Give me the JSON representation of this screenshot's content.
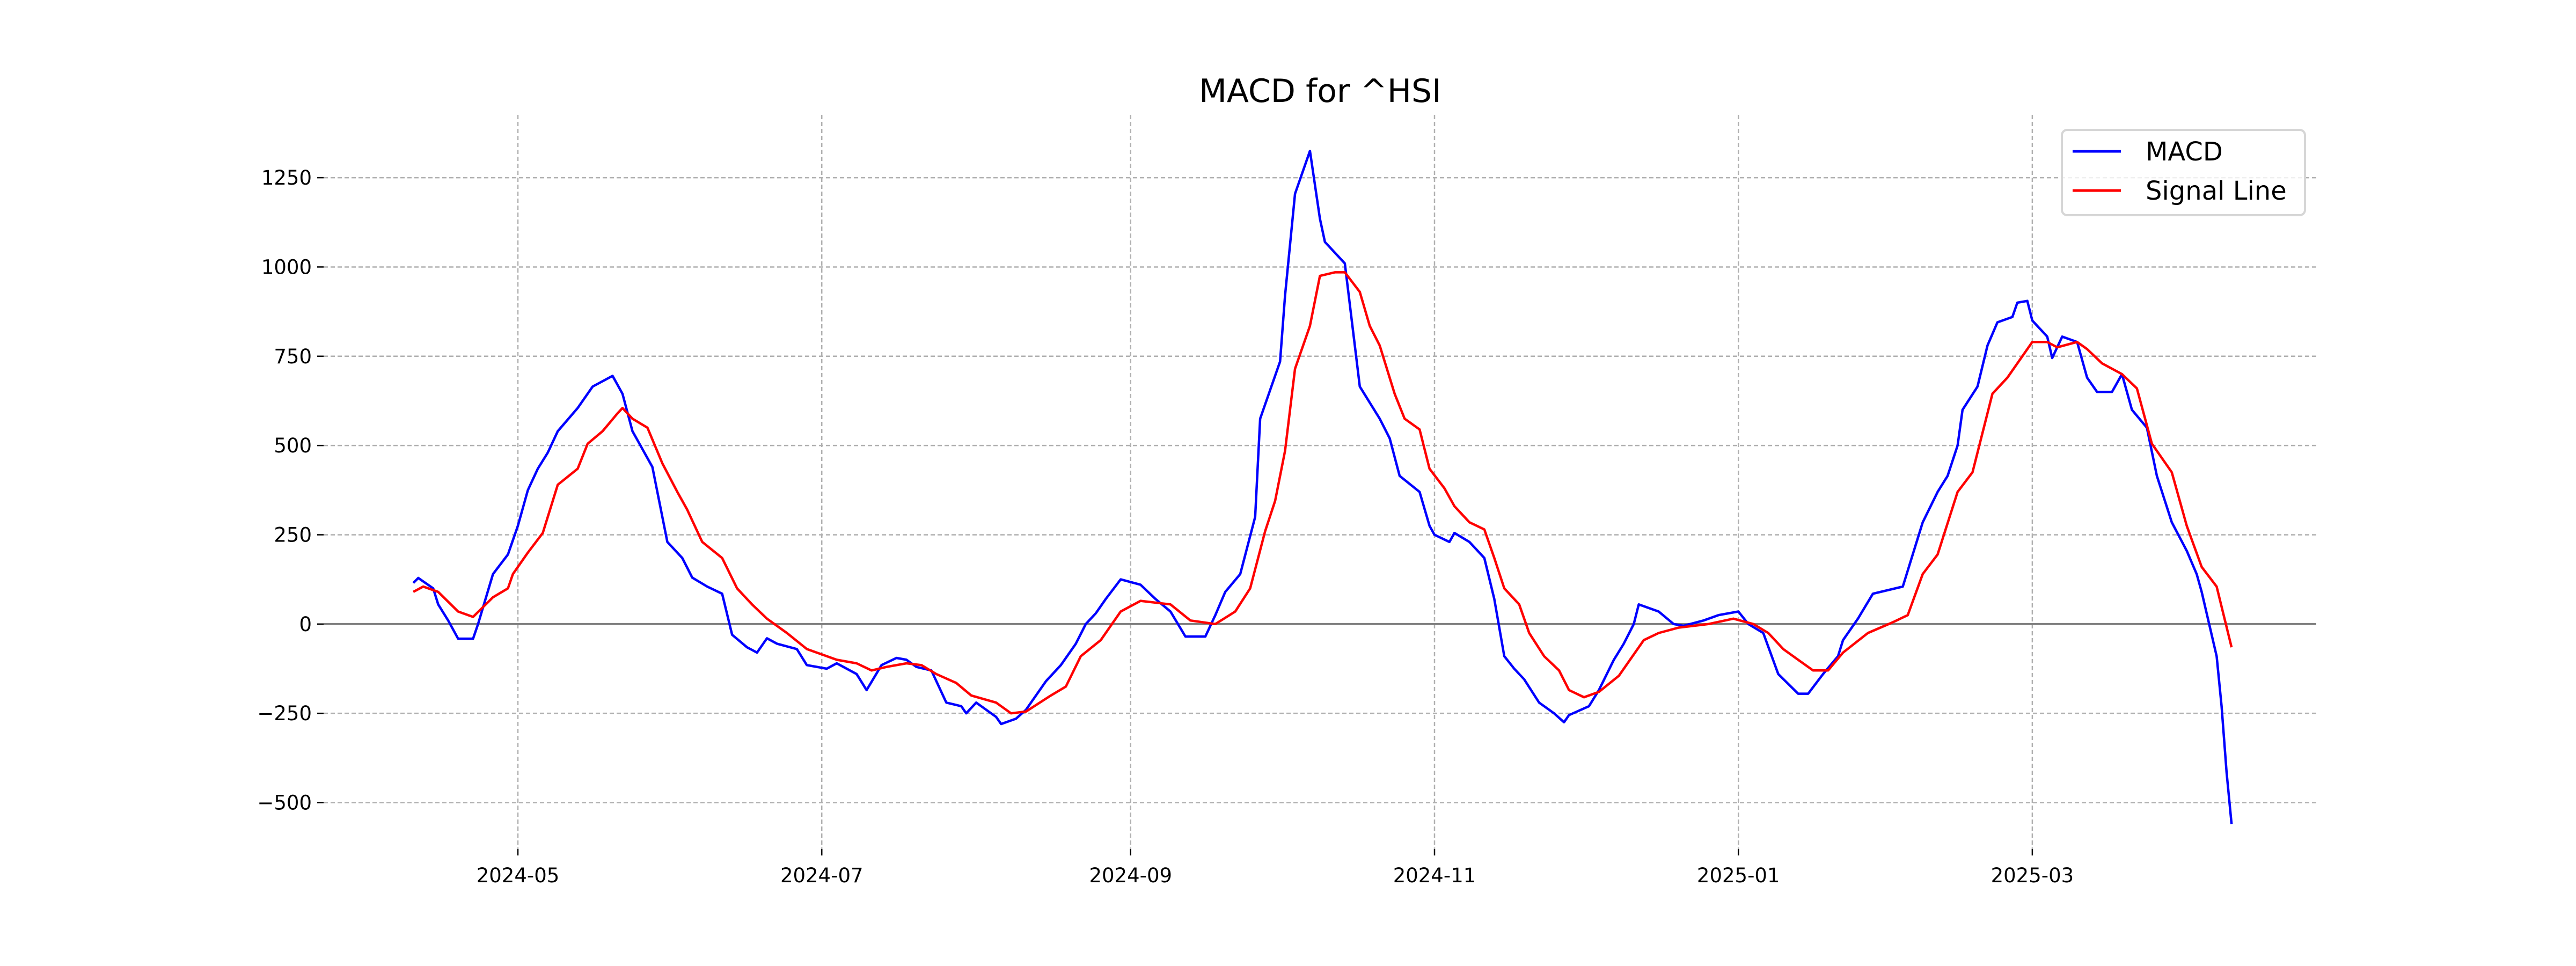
{
  "chart_data": {
    "type": "line",
    "title": "MACD for ^HSI",
    "xlabel": "",
    "ylabel": "",
    "x_origin_date": "2024-05-01",
    "x_unit": "days since x_origin_date",
    "xlim": [
      -39,
      361
    ],
    "ylim": [
      -630,
      1426
    ],
    "grid": true,
    "legend_position": "top-right",
    "zero_line": 0,
    "x_ticks": [
      {
        "value": 0,
        "label": "2024-05"
      },
      {
        "value": 61,
        "label": "2024-07"
      },
      {
        "value": 123,
        "label": "2024-09"
      },
      {
        "value": 184,
        "label": "2024-11"
      },
      {
        "value": 245,
        "label": "2025-01"
      },
      {
        "value": 304,
        "label": "2025-03"
      }
    ],
    "y_ticks": [
      {
        "value": -500,
        "label": "−500"
      },
      {
        "value": -250,
        "label": "−250"
      },
      {
        "value": 0,
        "label": "0"
      },
      {
        "value": 250,
        "label": "250"
      },
      {
        "value": 500,
        "label": "500"
      },
      {
        "value": 750,
        "label": "750"
      },
      {
        "value": 1000,
        "label": "1000"
      },
      {
        "value": 1250,
        "label": "1250"
      }
    ],
    "series": [
      {
        "name": "MACD",
        "color": "#0000ff",
        "points": [
          [
            -21,
            115
          ],
          [
            -20,
            129
          ],
          [
            -17,
            100
          ],
          [
            -16,
            55
          ],
          [
            -14,
            10
          ],
          [
            -12,
            -41
          ],
          [
            -9,
            -41
          ],
          [
            -8,
            0
          ],
          [
            -5,
            140
          ],
          [
            -2,
            195
          ],
          [
            0,
            275
          ],
          [
            2,
            375
          ],
          [
            4,
            435
          ],
          [
            6,
            480
          ],
          [
            8,
            540
          ],
          [
            12,
            605
          ],
          [
            15,
            665
          ],
          [
            19,
            695
          ],
          [
            21,
            645
          ],
          [
            23,
            540
          ],
          [
            25,
            490
          ],
          [
            27,
            440
          ],
          [
            30,
            230
          ],
          [
            33,
            185
          ],
          [
            35,
            130
          ],
          [
            38,
            105
          ],
          [
            41,
            85
          ],
          [
            43,
            -30
          ],
          [
            46,
            -65
          ],
          [
            48,
            -80
          ],
          [
            50,
            -40
          ],
          [
            52,
            -55
          ],
          [
            56,
            -70
          ],
          [
            58,
            -115
          ],
          [
            62,
            -125
          ],
          [
            64,
            -110
          ],
          [
            68,
            -140
          ],
          [
            70,
            -185
          ],
          [
            73,
            -115
          ],
          [
            76,
            -95
          ],
          [
            78,
            -100
          ],
          [
            80,
            -120
          ],
          [
            83,
            -130
          ],
          [
            86,
            -220
          ],
          [
            89,
            -230
          ],
          [
            90,
            -250
          ],
          [
            92,
            -220
          ],
          [
            96,
            -260
          ],
          [
            97,
            -280
          ],
          [
            100,
            -265
          ],
          [
            102,
            -240
          ],
          [
            106,
            -160
          ],
          [
            109,
            -115
          ],
          [
            112,
            -55
          ],
          [
            114,
            0
          ],
          [
            116,
            30
          ],
          [
            118,
            70
          ],
          [
            121,
            125
          ],
          [
            125,
            110
          ],
          [
            128,
            70
          ],
          [
            131,
            35
          ],
          [
            134,
            -35
          ],
          [
            138,
            -35
          ],
          [
            140,
            25
          ],
          [
            142,
            90
          ],
          [
            145,
            140
          ],
          [
            148,
            300
          ],
          [
            149,
            575
          ],
          [
            153,
            735
          ],
          [
            154,
            920
          ],
          [
            156,
            1205
          ],
          [
            159,
            1325
          ],
          [
            161,
            1135
          ],
          [
            162,
            1070
          ],
          [
            166,
            1010
          ],
          [
            169,
            665
          ],
          [
            173,
            575
          ],
          [
            175,
            520
          ],
          [
            177,
            415
          ],
          [
            181,
            370
          ],
          [
            183,
            275
          ],
          [
            184,
            250
          ],
          [
            187,
            230
          ],
          [
            188,
            255
          ],
          [
            191,
            230
          ],
          [
            194,
            185
          ],
          [
            196,
            70
          ],
          [
            198,
            -90
          ],
          [
            200,
            -125
          ],
          [
            202,
            -155
          ],
          [
            205,
            -220
          ],
          [
            208,
            -250
          ],
          [
            210,
            -275
          ],
          [
            211,
            -255
          ],
          [
            215,
            -230
          ],
          [
            217,
            -185
          ],
          [
            220,
            -100
          ],
          [
            222,
            -55
          ],
          [
            224,
            0
          ],
          [
            225,
            55
          ],
          [
            229,
            35
          ],
          [
            232,
            0
          ],
          [
            234,
            -5
          ],
          [
            238,
            10
          ],
          [
            241,
            25
          ],
          [
            245,
            35
          ],
          [
            247,
            0
          ],
          [
            250,
            -25
          ],
          [
            253,
            -140
          ],
          [
            257,
            -195
          ],
          [
            259,
            -195
          ],
          [
            262,
            -140
          ],
          [
            265,
            -90
          ],
          [
            266,
            -45
          ],
          [
            269,
            15
          ],
          [
            272,
            85
          ],
          [
            278,
            105
          ],
          [
            282,
            285
          ],
          [
            285,
            370
          ],
          [
            287,
            415
          ],
          [
            289,
            500
          ],
          [
            290,
            600
          ],
          [
            293,
            665
          ],
          [
            295,
            780
          ],
          [
            297,
            845
          ],
          [
            300,
            860
          ],
          [
            301,
            900
          ],
          [
            303,
            905
          ],
          [
            304,
            850
          ],
          [
            307,
            805
          ],
          [
            308,
            745
          ],
          [
            310,
            805
          ],
          [
            313,
            790
          ],
          [
            315,
            690
          ],
          [
            317,
            650
          ],
          [
            320,
            650
          ],
          [
            322,
            700
          ],
          [
            324,
            600
          ],
          [
            327,
            550
          ],
          [
            329,
            415
          ],
          [
            332,
            285
          ],
          [
            335,
            205
          ],
          [
            337,
            140
          ],
          [
            338,
            90
          ],
          [
            341,
            -90
          ],
          [
            342,
            -230
          ],
          [
            343,
            -415
          ],
          [
            344,
            -560
          ]
        ]
      },
      {
        "name": "Signal Line",
        "color": "#ff0000",
        "points": [
          [
            -21,
            90
          ],
          [
            -19,
            105
          ],
          [
            -16,
            90
          ],
          [
            -12,
            35
          ],
          [
            -9,
            20
          ],
          [
            -5,
            75
          ],
          [
            -2,
            100
          ],
          [
            -1,
            140
          ],
          [
            2,
            200
          ],
          [
            5,
            255
          ],
          [
            8,
            390
          ],
          [
            12,
            435
          ],
          [
            14,
            505
          ],
          [
            17,
            540
          ],
          [
            20,
            590
          ],
          [
            21,
            605
          ],
          [
            23,
            575
          ],
          [
            26,
            550
          ],
          [
            29,
            450
          ],
          [
            32,
            370
          ],
          [
            34,
            320
          ],
          [
            37,
            230
          ],
          [
            41,
            185
          ],
          [
            44,
            100
          ],
          [
            47,
            55
          ],
          [
            50,
            15
          ],
          [
            54,
            -25
          ],
          [
            58,
            -70
          ],
          [
            61,
            -85
          ],
          [
            64,
            -100
          ],
          [
            68,
            -110
          ],
          [
            71,
            -130
          ],
          [
            74,
            -120
          ],
          [
            78,
            -110
          ],
          [
            81,
            -115
          ],
          [
            84,
            -140
          ],
          [
            88,
            -165
          ],
          [
            91,
            -200
          ],
          [
            96,
            -220
          ],
          [
            99,
            -250
          ],
          [
            102,
            -245
          ],
          [
            107,
            -200
          ],
          [
            110,
            -175
          ],
          [
            113,
            -90
          ],
          [
            117,
            -45
          ],
          [
            121,
            35
          ],
          [
            125,
            65
          ],
          [
            131,
            55
          ],
          [
            135,
            10
          ],
          [
            140,
            0
          ],
          [
            144,
            35
          ],
          [
            147,
            100
          ],
          [
            150,
            260
          ],
          [
            152,
            345
          ],
          [
            154,
            485
          ],
          [
            156,
            715
          ],
          [
            159,
            835
          ],
          [
            161,
            975
          ],
          [
            164,
            985
          ],
          [
            166,
            985
          ],
          [
            169,
            930
          ],
          [
            171,
            835
          ],
          [
            173,
            780
          ],
          [
            176,
            645
          ],
          [
            178,
            575
          ],
          [
            181,
            545
          ],
          [
            183,
            435
          ],
          [
            186,
            380
          ],
          [
            188,
            330
          ],
          [
            191,
            285
          ],
          [
            194,
            265
          ],
          [
            196,
            185
          ],
          [
            198,
            100
          ],
          [
            201,
            55
          ],
          [
            203,
            -25
          ],
          [
            206,
            -90
          ],
          [
            209,
            -130
          ],
          [
            211,
            -185
          ],
          [
            214,
            -205
          ],
          [
            217,
            -190
          ],
          [
            221,
            -145
          ],
          [
            226,
            -45
          ],
          [
            229,
            -25
          ],
          [
            233,
            -10
          ],
          [
            239,
            0
          ],
          [
            244,
            15
          ],
          [
            248,
            0
          ],
          [
            251,
            -25
          ],
          [
            254,
            -70
          ],
          [
            257,
            -100
          ],
          [
            260,
            -130
          ],
          [
            263,
            -130
          ],
          [
            266,
            -80
          ],
          [
            271,
            -25
          ],
          [
            276,
            5
          ],
          [
            279,
            25
          ],
          [
            282,
            140
          ],
          [
            285,
            195
          ],
          [
            289,
            370
          ],
          [
            292,
            425
          ],
          [
            296,
            645
          ],
          [
            299,
            690
          ],
          [
            304,
            790
          ],
          [
            307,
            790
          ],
          [
            309,
            775
          ],
          [
            313,
            790
          ],
          [
            315,
            770
          ],
          [
            318,
            730
          ],
          [
            322,
            700
          ],
          [
            325,
            660
          ],
          [
            328,
            505
          ],
          [
            332,
            425
          ],
          [
            335,
            275
          ],
          [
            338,
            160
          ],
          [
            341,
            105
          ],
          [
            344,
            -65
          ]
        ]
      }
    ]
  }
}
